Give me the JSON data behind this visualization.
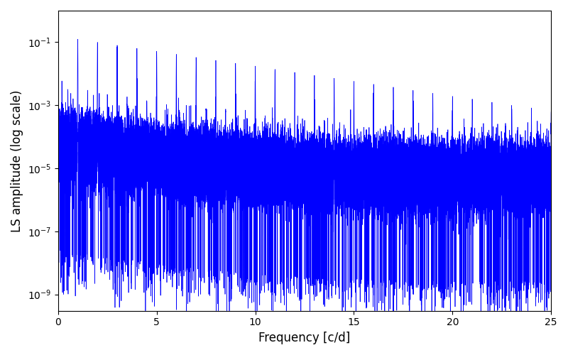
{
  "xlabel": "Frequency [c/d]",
  "ylabel": "LS amplitude (log scale)",
  "xlim": [
    0,
    25
  ],
  "ylim": [
    3e-10,
    1
  ],
  "line_color": "#0000ff",
  "line_width": 0.5,
  "figsize": [
    8.0,
    5.0
  ],
  "dpi": 100,
  "freq_max": 25.0,
  "n_points": 50000,
  "seed": 12345,
  "yticks": [
    1e-09,
    1e-07,
    1e-05,
    0.001,
    0.1
  ],
  "xticks": [
    0,
    5,
    10,
    15,
    20,
    25
  ]
}
